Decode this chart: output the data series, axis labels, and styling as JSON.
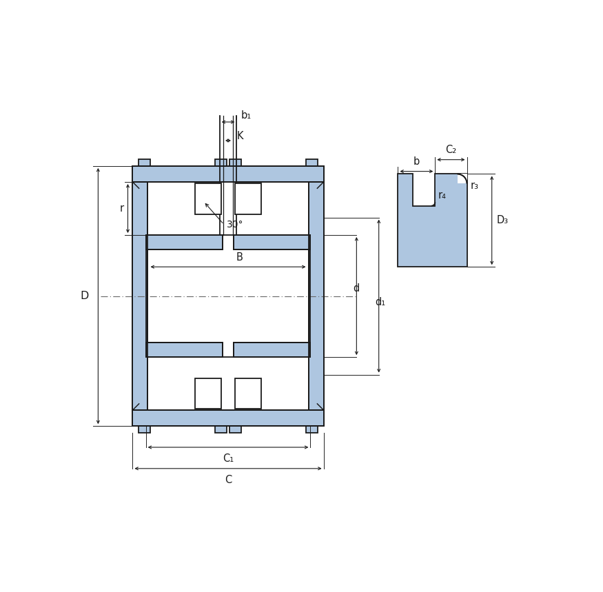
{
  "bg_color": "#ffffff",
  "blue_fill": "#aec6e0",
  "line_color": "#1a1a1a",
  "fig_width": 8.75,
  "fig_height": 8.59,
  "labels": {
    "b1": "b₁",
    "K": "K",
    "B": "B",
    "D": "D",
    "d": "d",
    "d1": "d₁",
    "r": "r",
    "C1": "C₁",
    "C": "C",
    "C2": "C₂",
    "b": "b",
    "r4": "r₄",
    "r3": "r₃",
    "D3": "D₃",
    "angle": "30°"
  }
}
